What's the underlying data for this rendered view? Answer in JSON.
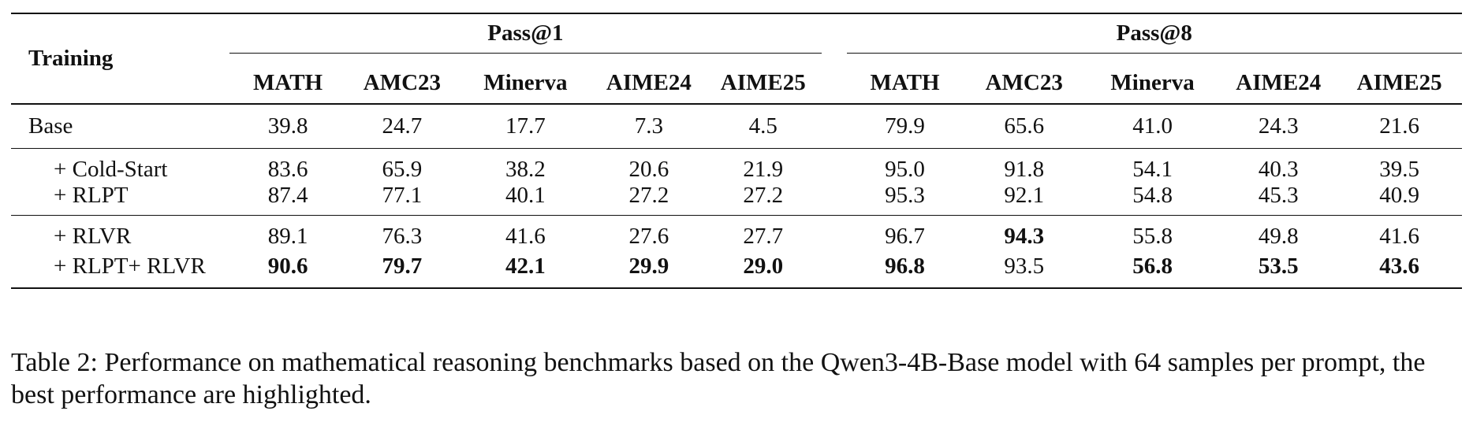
{
  "table": {
    "training_header": "Training",
    "groups": [
      "Pass@1",
      "Pass@8"
    ],
    "columns": [
      "MATH",
      "AMC23",
      "Minerva",
      "AIME24",
      "AIME25"
    ],
    "rows": [
      {
        "label": "Base",
        "values": [
          "39.8",
          "24.7",
          "17.7",
          "7.3",
          "4.5",
          "79.9",
          "65.6",
          "41.0",
          "24.3",
          "21.6"
        ]
      },
      {
        "label": "+ Cold-Start",
        "values": [
          "83.6",
          "65.9",
          "38.2",
          "20.6",
          "21.9",
          "95.0",
          "91.8",
          "54.1",
          "40.3",
          "39.5"
        ]
      },
      {
        "label": "+ RLPT",
        "values": [
          "87.4",
          "77.1",
          "40.1",
          "27.2",
          "27.2",
          "95.3",
          "92.1",
          "54.8",
          "45.3",
          "40.9"
        ]
      },
      {
        "label": "+ RLVR",
        "values": [
          "89.1",
          "76.3",
          "41.6",
          "27.6",
          "27.7",
          "96.7",
          "94.3",
          "55.8",
          "49.8",
          "41.6"
        ]
      },
      {
        "label": "+ RLPT+ RLVR",
        "values": [
          "90.6",
          "79.7",
          "42.1",
          "29.9",
          "29.0",
          "96.8",
          "93.5",
          "56.8",
          "53.5",
          "43.6"
        ]
      }
    ],
    "bold_cells": [
      [
        3,
        6
      ],
      [
        4,
        0
      ],
      [
        4,
        1
      ],
      [
        4,
        2
      ],
      [
        4,
        3
      ],
      [
        4,
        4
      ],
      [
        4,
        5
      ],
      [
        4,
        7
      ],
      [
        4,
        8
      ],
      [
        4,
        9
      ]
    ]
  },
  "caption": "Table 2: Performance on mathematical reasoning benchmarks based on the Qwen3-4B-Base model with 64 samples per prompt, the best performance are highlighted."
}
